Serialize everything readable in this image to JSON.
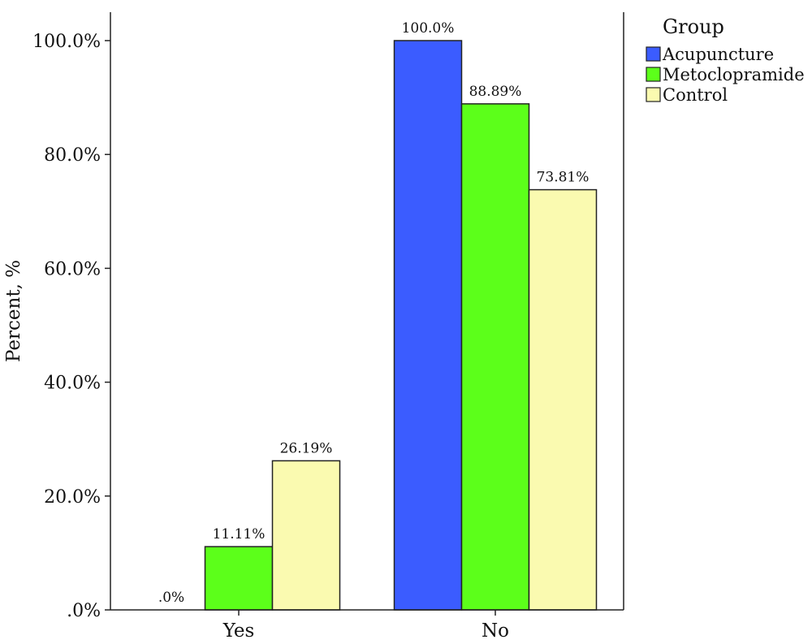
{
  "chart_data": {
    "type": "bar",
    "ylabel": "Percent, %",
    "xlabel": "",
    "categories": [
      "Yes",
      "No"
    ],
    "series": [
      {
        "name": "Acupuncture",
        "color": "#3b5cff",
        "values": [
          0,
          100.0
        ],
        "labels": [
          ".0%",
          "100.0%"
        ]
      },
      {
        "name": "Metoclopramide",
        "color": "#5cff1a",
        "values": [
          11.11,
          88.89
        ],
        "labels": [
          "11.11%",
          "88.89%"
        ]
      },
      {
        "name": "Control",
        "color": "#fafab0",
        "values": [
          26.19,
          73.81
        ],
        "labels": [
          "26.19%",
          "73.81%"
        ]
      }
    ],
    "ylim": [
      0,
      100
    ],
    "yticks": [
      0,
      20,
      40,
      60,
      80,
      100
    ],
    "ytick_labels": [
      ".0%",
      "20.0%",
      "40.0%",
      "60.0%",
      "80.0%",
      "100.0%"
    ],
    "legend": {
      "title": "Group",
      "position": "top-right"
    },
    "grid": false
  }
}
